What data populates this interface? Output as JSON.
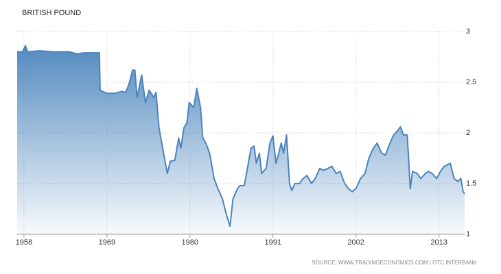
{
  "chart_data": {
    "type": "area",
    "title": "BRITISH POUND",
    "source": "SOURCE: WWW.TRADINGECONOMICS.COM | OTC INTERBANK",
    "color": "#4a84bd",
    "x": [
      1957.1,
      1957.8,
      1958.2,
      1958.5,
      1960,
      1962,
      1964,
      1965,
      1966,
      1968.0,
      1968.1,
      1969,
      1970,
      1971,
      1971.5,
      1972,
      1972.4,
      1972.7,
      1973,
      1973.6,
      1974.1,
      1974.6,
      1975.2,
      1975.5,
      1975.9,
      1976.5,
      1977,
      1977.4,
      1978,
      1978.5,
      1978.8,
      1979.2,
      1979.6,
      1979.9,
      1980.5,
      1980.9,
      1981.4,
      1981.7,
      1982.1,
      1982.6,
      1983.2,
      1983.7,
      1984.3,
      1984.8,
      1985.3,
      1985.7,
      1986.3,
      1986.6,
      1987.2,
      1987.5,
      1988.1,
      1988.5,
      1988.8,
      1989.2,
      1989.5,
      1990.1,
      1990.6,
      1991,
      1991.4,
      1991.7,
      1992.1,
      1992.4,
      1992.8,
      1993.2,
      1993.5,
      1993.9,
      1994.5,
      1995,
      1995.5,
      1996.1,
      1996.6,
      1997.2,
      1997.7,
      1998.3,
      1998.8,
      1999.4,
      1999.9,
      2000.5,
      2001,
      2001.5,
      2002,
      2002.6,
      2003.2,
      2003.7,
      2004.3,
      2004.8,
      2005.4,
      2005.9,
      2006.5,
      2007,
      2007.5,
      2007.9,
      2008.3,
      2008.8,
      2009.2,
      2009.5,
      2010.1,
      2010.6,
      2011.2,
      2011.6,
      2012.1,
      2012.7,
      2013.2,
      2013.7,
      2014.5,
      2015,
      2015.5,
      2015.9,
      2016.2,
      2016.4
    ],
    "values": [
      2.8,
      2.8,
      2.86,
      2.8,
      2.81,
      2.8,
      2.8,
      2.78,
      2.79,
      2.79,
      2.42,
      2.39,
      2.39,
      2.41,
      2.4,
      2.5,
      2.62,
      2.62,
      2.35,
      2.57,
      2.3,
      2.42,
      2.35,
      2.4,
      2.05,
      1.8,
      1.6,
      1.72,
      1.73,
      1.95,
      1.85,
      2.05,
      2.1,
      2.3,
      2.25,
      2.44,
      2.25,
      1.95,
      1.9,
      1.8,
      1.55,
      1.45,
      1.35,
      1.2,
      1.08,
      1.35,
      1.45,
      1.48,
      1.48,
      1.6,
      1.85,
      1.87,
      1.7,
      1.8,
      1.6,
      1.65,
      1.9,
      1.97,
      1.7,
      1.78,
      1.9,
      1.8,
      1.98,
      1.5,
      1.43,
      1.5,
      1.5,
      1.55,
      1.58,
      1.5,
      1.55,
      1.65,
      1.63,
      1.65,
      1.67,
      1.6,
      1.62,
      1.5,
      1.45,
      1.42,
      1.45,
      1.55,
      1.6,
      1.75,
      1.85,
      1.9,
      1.8,
      1.78,
      1.9,
      1.98,
      2.02,
      2.06,
      1.98,
      1.98,
      1.45,
      1.62,
      1.6,
      1.55,
      1.6,
      1.62,
      1.6,
      1.55,
      1.62,
      1.67,
      1.7,
      1.55,
      1.52,
      1.55,
      1.42,
      1.4
    ],
    "xlim": [
      1957.1,
      2016.4
    ],
    "xticks": [
      1958,
      1969,
      1980,
      1991,
      2002,
      2013
    ],
    "ylim": [
      1,
      3
    ],
    "yticks": [
      1,
      1.5,
      2,
      2.5,
      3
    ],
    "grid": true
  }
}
